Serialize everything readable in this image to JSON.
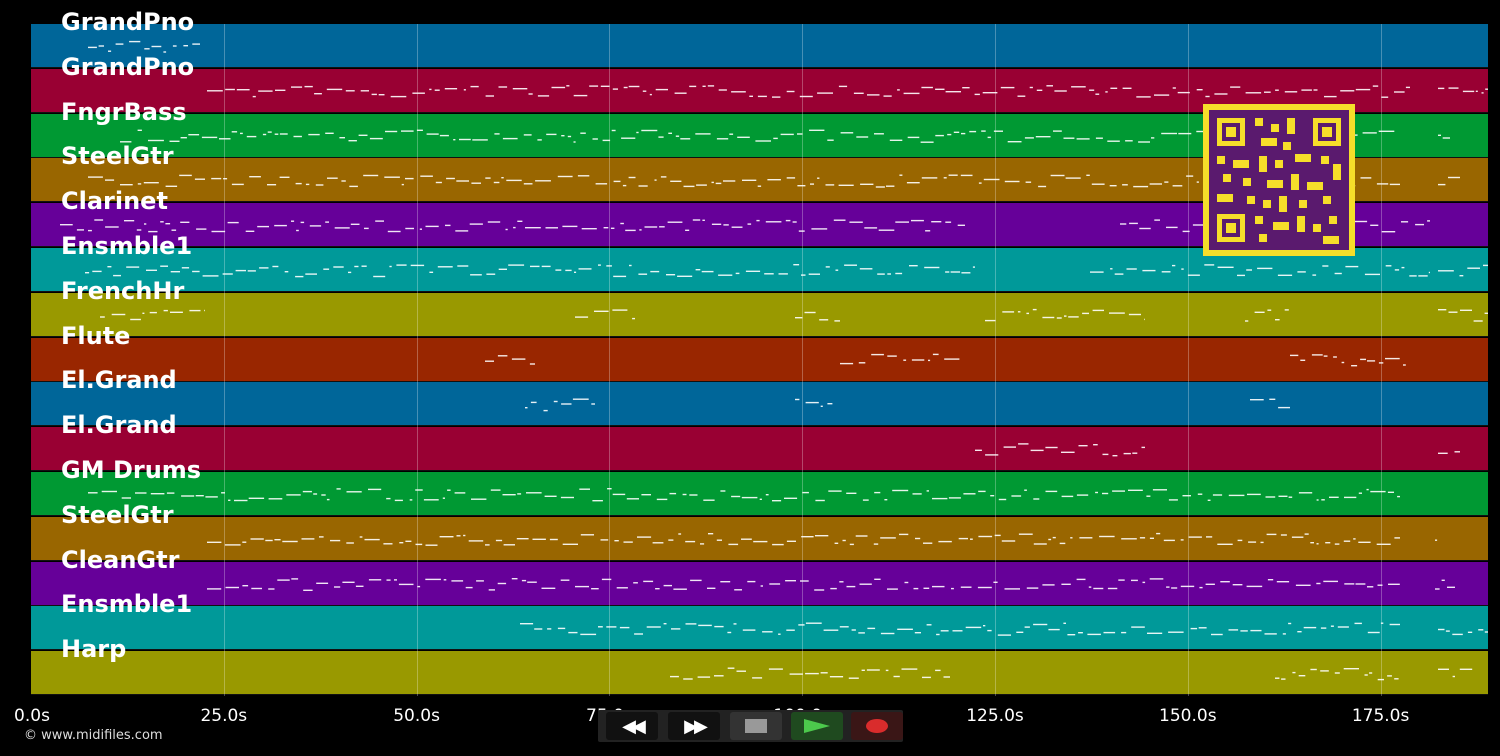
{
  "tracks": [
    {
      "name": "GrandPno",
      "color": "#006699"
    },
    {
      "name": "GrandPno",
      "color": "#990033"
    },
    {
      "name": "FngrBass",
      "color": "#009933"
    },
    {
      "name": "SteelGtr",
      "color": "#996600"
    },
    {
      "name": "Clarinet",
      "color": "#660099"
    },
    {
      "name": "Ensmble1",
      "color": "#009999"
    },
    {
      "name": "FrenchHr",
      "color": "#999900"
    },
    {
      "name": "Flute",
      "color": "#992600"
    },
    {
      "name": "El.Grand",
      "color": "#006699"
    },
    {
      "name": "El.Grand",
      "color": "#990033"
    },
    {
      "name": "GM Drums",
      "color": "#009933"
    },
    {
      "name": "SteelGtr",
      "color": "#996600"
    },
    {
      "name": "CleanGtr",
      "color": "#660099"
    },
    {
      "name": "Ensmble1",
      "color": "#009999"
    },
    {
      "name": "Harp",
      "color": "#999900"
    }
  ],
  "timeline": {
    "ticks": [
      "0.0s",
      "25.0s",
      "50.0s",
      "75.0s",
      "100.0s",
      "125.0s",
      "150.0s",
      "175.0s"
    ]
  },
  "copyright": "© www.midifiles.com",
  "transport": {
    "rewind_icon": "rewind-icon",
    "forward_icon": "fast-forward-icon",
    "stop_icon": "stop-icon",
    "play_icon": "play-icon",
    "record_icon": "record-icon"
  },
  "qr_code": {
    "icon": "qr-code-icon",
    "color": "#f6de2a"
  }
}
